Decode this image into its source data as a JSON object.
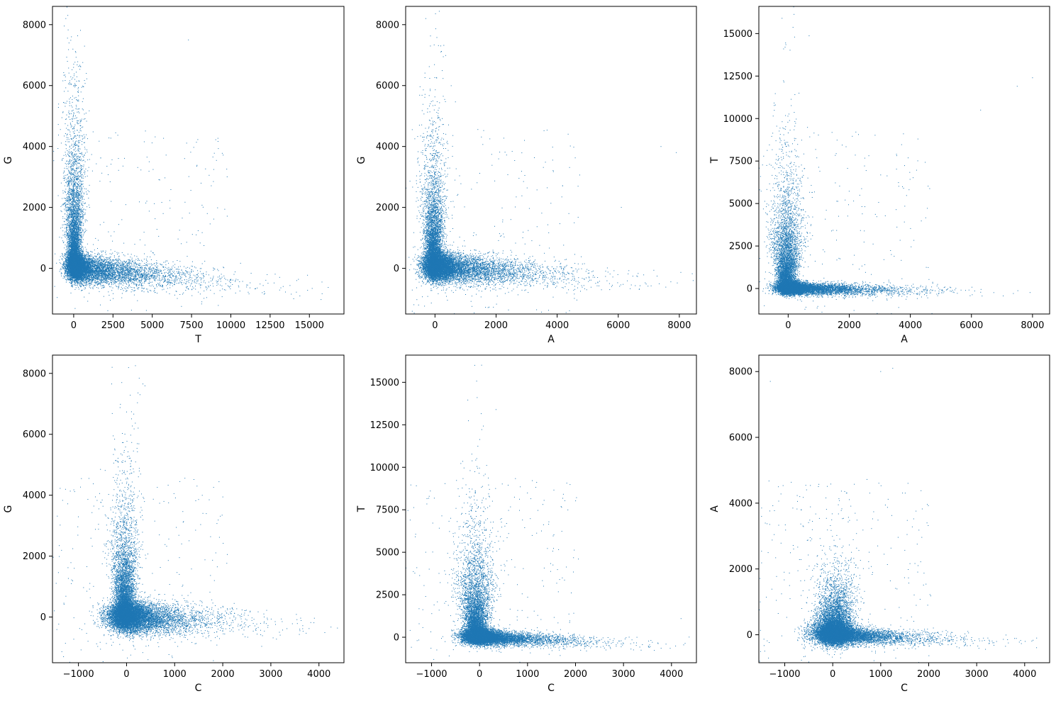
{
  "colors": {
    "points": "#1f77b4",
    "background": "#ffffff",
    "axes": "#000000"
  },
  "chart_data": [
    {
      "type": "scatter",
      "xlabel": "T",
      "ylabel": "G",
      "xlim": [
        -1350,
        17200
      ],
      "ylim": [
        -1500,
        8600
      ],
      "xticks": [
        0,
        2500,
        5000,
        7500,
        10000,
        12500,
        15000
      ],
      "yticks": [
        0,
        2000,
        4000,
        6000,
        8000
      ],
      "distribution": {
        "arm_y": {
          "x_center": 50,
          "x_spread": 260,
          "extent": 4200
        },
        "arm_x": {
          "y_center": 0,
          "y_spread": 230,
          "extent": 6500,
          "slope": -0.045
        },
        "blob": {
          "x": 150,
          "y": 80,
          "sx": 350,
          "sy": 220
        }
      },
      "sample_outliers": [
        [
          -500,
          8200
        ],
        [
          15800,
          -450
        ],
        [
          14000,
          -1000
        ],
        [
          12000,
          -800
        ],
        [
          7300,
          7500
        ],
        [
          -300,
          7400
        ]
      ]
    },
    {
      "type": "scatter",
      "xlabel": "A",
      "ylabel": "G",
      "xlim": [
        -960,
        8560
      ],
      "ylim": [
        -1500,
        8600
      ],
      "xticks": [
        0,
        2000,
        4000,
        6000,
        8000
      ],
      "yticks": [
        0,
        2000,
        4000,
        6000,
        8000
      ],
      "distribution": {
        "arm_y": {
          "x_center": -50,
          "x_spread": 170,
          "extent": 3400
        },
        "arm_x": {
          "y_center": 30,
          "y_spread": 240,
          "extent": 3600,
          "slope": -0.06
        },
        "blob": {
          "x": 100,
          "y": 80,
          "sx": 280,
          "sy": 220
        }
      },
      "sample_outliers": [
        [
          -300,
          8200
        ],
        [
          7900,
          3800
        ],
        [
          7400,
          4000
        ],
        [
          6100,
          2000
        ],
        [
          -150,
          7300
        ]
      ]
    },
    {
      "type": "scatter",
      "xlabel": "A",
      "ylabel": "T",
      "xlim": [
        -960,
        8560
      ],
      "ylim": [
        -1500,
        16600
      ],
      "xticks": [
        0,
        2000,
        4000,
        6000,
        8000
      ],
      "yticks": [
        0,
        2500,
        5000,
        7500,
        10000,
        12500,
        15000
      ],
      "distribution": {
        "arm_y": {
          "x_center": -50,
          "x_spread": 190,
          "extent": 5500
        },
        "arm_x": {
          "y_center": 0,
          "y_spread": 170,
          "extent": 3000,
          "slope": -0.03
        },
        "blob": {
          "x": 80,
          "y": 50,
          "sx": 250,
          "sy": 180
        }
      },
      "sample_outliers": [
        [
          -200,
          15900
        ],
        [
          8000,
          12400
        ],
        [
          7500,
          11900
        ],
        [
          6300,
          10500
        ],
        [
          -100,
          14200
        ]
      ]
    },
    {
      "type": "scatter",
      "xlabel": "C",
      "ylabel": "G",
      "xlim": [
        -1540,
        4520
      ],
      "ylim": [
        -1500,
        8600
      ],
      "xticks": [
        -1000,
        0,
        1000,
        2000,
        3000,
        4000
      ],
      "yticks": [
        0,
        2000,
        4000,
        6000,
        8000
      ],
      "distribution": {
        "arm_y": {
          "x_center": -40,
          "x_spread": 130,
          "extent": 3200
        },
        "arm_x": {
          "y_center": 0,
          "y_spread": 260,
          "extent": 1700,
          "slope": -0.08
        },
        "blob": {
          "x": 0,
          "y": 50,
          "sx": 230,
          "sy": 240
        }
      },
      "sample_outliers": [
        [
          -300,
          8200
        ],
        [
          4250,
          -330
        ],
        [
          -1300,
          420
        ],
        [
          3600,
          -400
        ],
        [
          -100,
          7700
        ]
      ]
    },
    {
      "type": "scatter",
      "xlabel": "C",
      "ylabel": "T",
      "xlim": [
        -1540,
        4520
      ],
      "ylim": [
        -1500,
        16600
      ],
      "xticks": [
        -1000,
        0,
        1000,
        2000,
        3000,
        4000
      ],
      "yticks": [
        0,
        2500,
        5000,
        7500,
        10000,
        12500,
        15000
      ],
      "distribution": {
        "arm_y": {
          "x_center": -80,
          "x_spread": 140,
          "extent": 5200
        },
        "arm_x": {
          "y_center": 0,
          "y_spread": 200,
          "extent": 1800,
          "slope": -0.12
        },
        "blob": {
          "x": 0,
          "y": 50,
          "sx": 200,
          "sy": 240
        }
      },
      "sample_outliers": [
        [
          -100,
          16000
        ],
        [
          -1300,
          -200
        ],
        [
          4200,
          1100
        ],
        [
          3600,
          -300
        ],
        [
          -50,
          14100
        ]
      ]
    },
    {
      "type": "scatter",
      "xlabel": "C",
      "ylabel": "A",
      "xlim": [
        -1540,
        4520
      ],
      "ylim": [
        -850,
        8500
      ],
      "xticks": [
        -1000,
        0,
        1000,
        2000,
        3000,
        4000
      ],
      "yticks": [
        0,
        2000,
        4000,
        6000,
        8000
      ],
      "distribution": {
        "arm_y": {
          "x_center": 50,
          "x_spread": 230,
          "extent": 1700
        },
        "arm_x": {
          "y_center": 0,
          "y_spread": 120,
          "extent": 1800,
          "slope": -0.06
        },
        "blob": {
          "x": 0,
          "y": 80,
          "sx": 250,
          "sy": 200
        }
      },
      "sample_outliers": [
        [
          -1300,
          7700
        ],
        [
          1250,
          8100
        ],
        [
          4250,
          -100
        ],
        [
          3600,
          -350
        ],
        [
          1000,
          8000
        ]
      ]
    }
  ]
}
